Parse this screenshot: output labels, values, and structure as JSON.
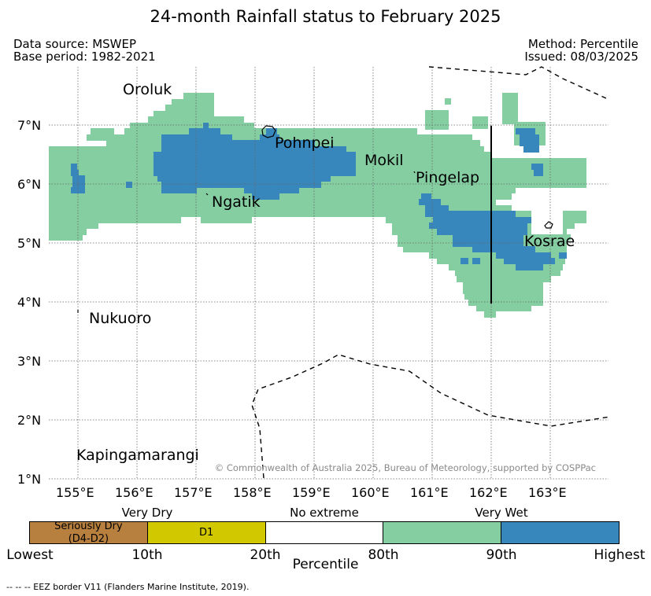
{
  "title": "24-month Rainfall status to February 2025",
  "data_source": "Data source: MSWEP",
  "base_period": "Base period: 1982-2021",
  "method": "Method: Percentile",
  "issued": "Issued: 08/03/2025",
  "copyright": "© Commonwealth of Australia 2025, Bureau of Meteorology, supported by COSPPac",
  "footnote": "--  --  -- EEZ border V11 (Flanders Marine Institute, 2019).",
  "places": [
    "Oroluk",
    "Pohnpei",
    "Mokil",
    "Pingelap",
    "Ngatik",
    "Kosrae",
    "Nukuoro",
    "Kapingamarangi"
  ],
  "lat_ticks": [
    "7°N",
    "6°N",
    "5°N",
    "4°N",
    "3°N",
    "2°N",
    "1°N"
  ],
  "lon_ticks": [
    "155°E",
    "156°E",
    "157°E",
    "158°E",
    "159°E",
    "160°E",
    "161°E",
    "162°E",
    "163°E"
  ],
  "colorbar": {
    "category_labels": [
      "Very Dry",
      "No extreme",
      "Very Wet"
    ],
    "segments": [
      {
        "label": "Seriously Dry\n(D4-D2)",
        "color": "#b8803f"
      },
      {
        "label": "D1",
        "color": "#d2c800"
      },
      {
        "label": "",
        "color": "#ffffff"
      },
      {
        "label": "",
        "color": "#84cea2"
      },
      {
        "label": "",
        "color": "#3787bc"
      }
    ],
    "tick_labels": [
      "Lowest",
      "10th",
      "20th",
      "80th",
      "90th",
      "Highest"
    ],
    "axis_label": "Percentile"
  },
  "colors": {
    "very_wet": "#84cea2",
    "highest": "#3787bc"
  }
}
